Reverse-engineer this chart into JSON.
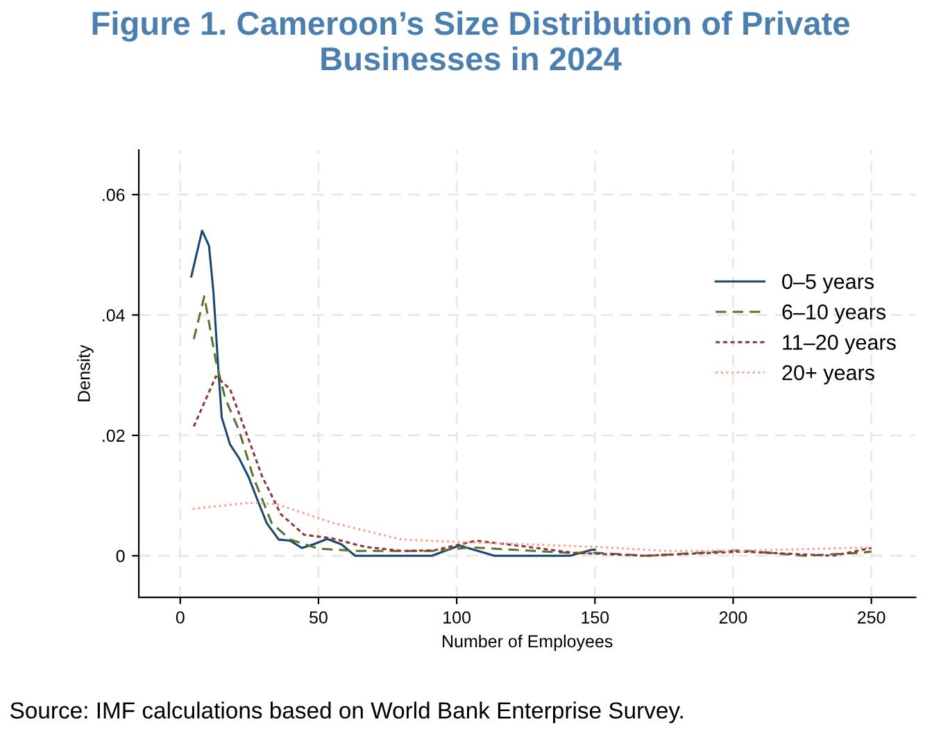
{
  "chart_data": {
    "type": "line",
    "title": "Figure 1. Cameroon’s Size Distribution of Private Businesses in 2024",
    "xlabel": "Number of Employees",
    "ylabel": "Density",
    "annotations": [
      "Source: IMF calculations based on World Bank Enterprise Survey."
    ],
    "xlim": [
      -15,
      266
    ],
    "ylim": [
      -0.0069,
      0.0674
    ],
    "xticks": [
      0,
      50,
      100,
      150,
      200,
      250
    ],
    "yticks": [
      {
        "value": 0,
        "label": "0"
      },
      {
        "value": 0.02,
        "label": ".02"
      },
      {
        "value": 0.04,
        "label": ".04"
      },
      {
        "value": 0.06,
        "label": ".06"
      }
    ],
    "grid": true,
    "legend": "right",
    "series": [
      {
        "name": "0–5 years",
        "color": "#1a476f",
        "line_style": "solid",
        "x": [
          4,
          7.9,
          10.4,
          12,
          13.8,
          15,
          18,
          21.3,
          24.7,
          28,
          31.3,
          35.6,
          39.8,
          44,
          48.2,
          53.2,
          58.3,
          63.3,
          91,
          101,
          113.7,
          141,
          149,
          150
        ],
        "values": [
          0.0464,
          0.054,
          0.0515,
          0.0438,
          0.0308,
          0.023,
          0.0185,
          0.0162,
          0.0131,
          0.0092,
          0.0054,
          0.0027,
          0.0025,
          0.0013,
          0.0019,
          0.0028,
          0.0019,
          0,
          0,
          0.0017,
          0,
          0,
          0.001,
          0.001
        ]
      },
      {
        "name": "6–10 years",
        "color": "#55752f",
        "line_style": "dashed",
        "x": [
          4.9,
          8.7,
          12.9,
          16.3,
          21.3,
          26.4,
          33.1,
          39.8,
          49.9,
          63.3,
          92.7,
          105,
          140,
          150,
          169,
          202.6,
          226,
          246,
          250
        ],
        "values": [
          0.036,
          0.0431,
          0.0323,
          0.0261,
          0.0208,
          0.0131,
          0.0054,
          0.0027,
          0.0012,
          0.0008,
          0.0008,
          0.0014,
          0.0005,
          0.0005,
          0,
          0.0009,
          0,
          0.0005,
          0.0007
        ]
      },
      {
        "name": "11–20 years",
        "color": "#90353b",
        "line_style": "dotted",
        "x": [
          4.9,
          12.9,
          18,
          23,
          29.7,
          36.4,
          44.8,
          54.9,
          66.7,
          80,
          91.8,
          107,
          125.5,
          142,
          168,
          203,
          236,
          250
        ],
        "values": [
          0.0215,
          0.0298,
          0.0277,
          0.0215,
          0.0131,
          0.0069,
          0.0035,
          0.0029,
          0.0015,
          0.0008,
          0.0009,
          0.0025,
          0.0015,
          0.0005,
          0,
          0.0007,
          0,
          0.0013
        ]
      },
      {
        "name": "20+ years",
        "color": "#f8a58b",
        "line_style": "dotted",
        "x": [
          4.5,
          24.7,
          34.8,
          54.9,
          80,
          100,
          150,
          176,
          209.5,
          250
        ],
        "values": [
          0.0078,
          0.0088,
          0.0086,
          0.0055,
          0.0027,
          0.0023,
          0.0015,
          0.0008,
          0.0009,
          0.0014
        ]
      }
    ]
  }
}
